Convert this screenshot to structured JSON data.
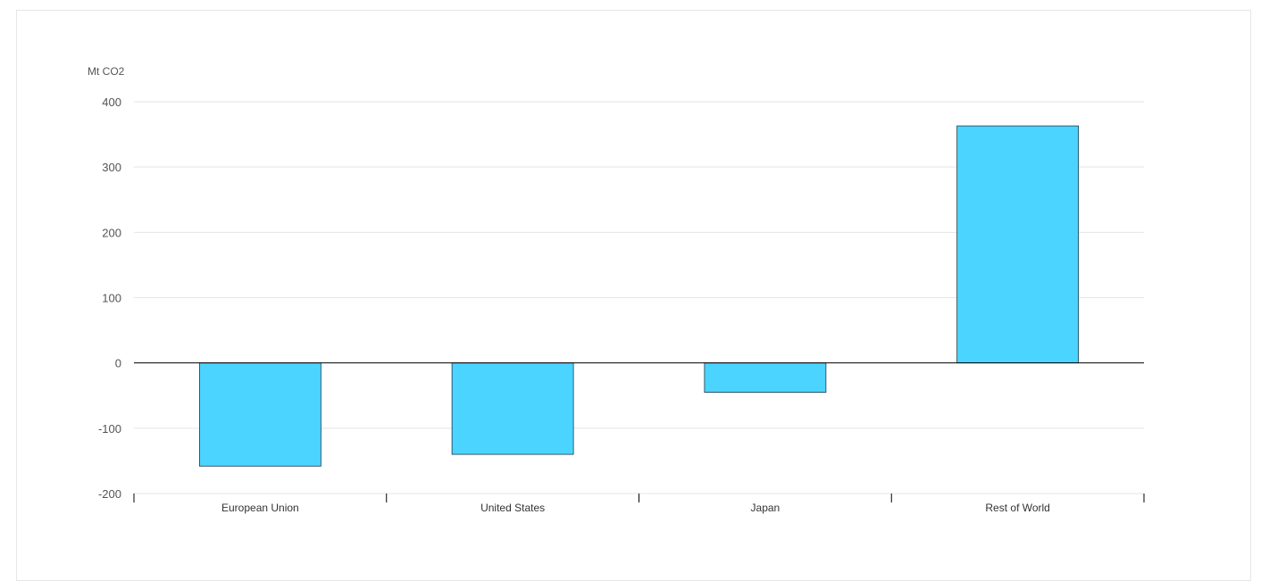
{
  "chart_data": {
    "type": "bar",
    "categories": [
      "European Union",
      "United States",
      "Japan",
      "Rest of World"
    ],
    "values": [
      -158,
      -140,
      -45,
      363
    ],
    "ylabel": "Mt CO2",
    "yticks": [
      400,
      300,
      200,
      100,
      0,
      -100,
      -200
    ],
    "ylim": [
      -200,
      400
    ],
    "grid": true,
    "colors": {
      "bar_fill": "#4bd4ff",
      "bar_stroke": "#1a3a4a",
      "grid": "#e5e5e5",
      "zero_line": "#000000"
    }
  }
}
